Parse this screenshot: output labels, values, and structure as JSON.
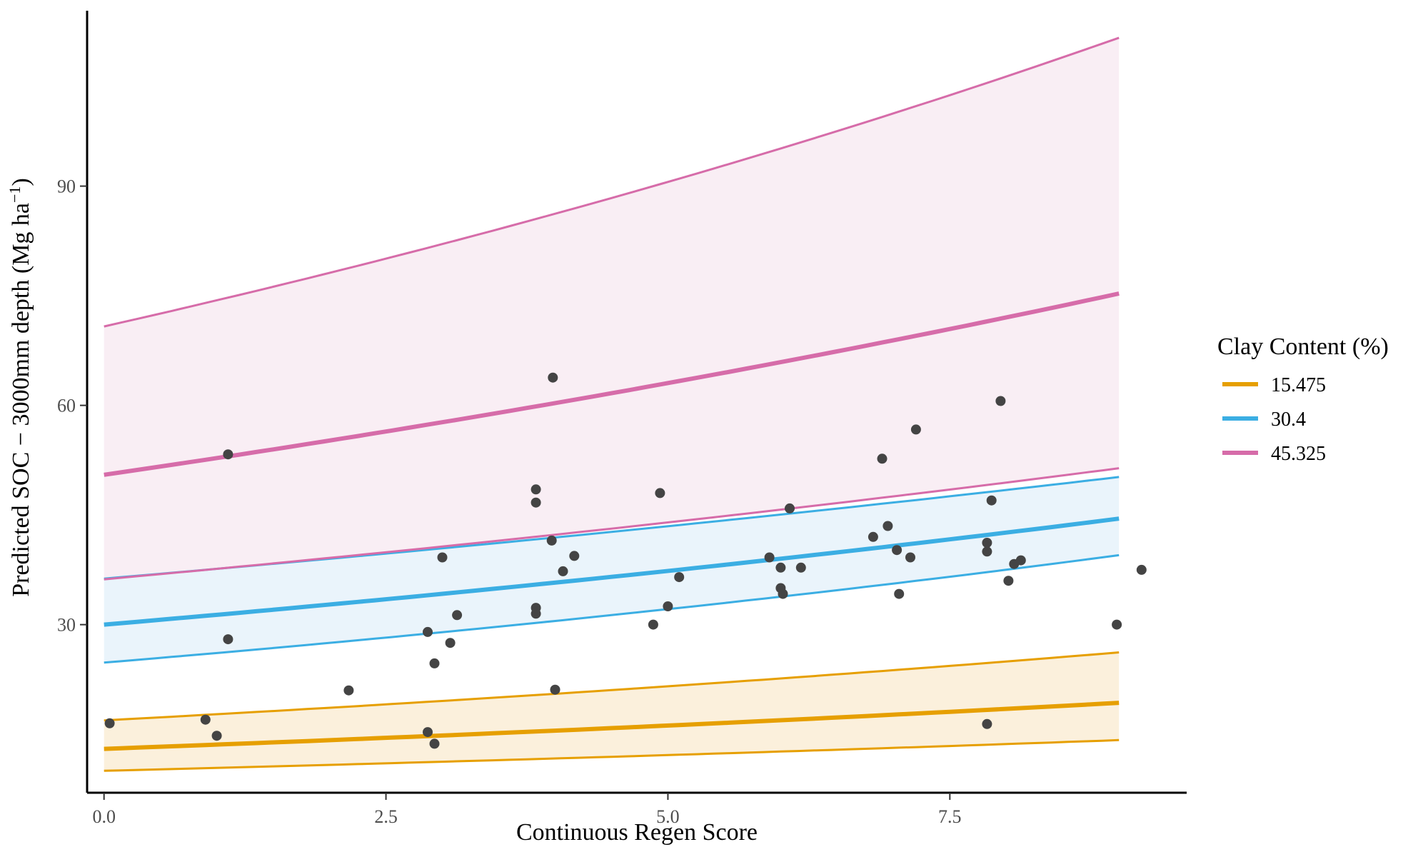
{
  "chart_data": {
    "type": "line",
    "title": "",
    "xlabel": "Continuous Regen Score",
    "ylabel_parts": {
      "main": "Predicted SOC − 3000mm depth (Mg ha",
      "sup": "−1",
      "close": ")"
    },
    "xlim": [
      -0.15,
      9.6
    ],
    "ylim": [
      7.0,
      114.0
    ],
    "x_ticks": [
      0,
      2.5,
      5,
      7.5
    ],
    "x_tick_labels": [
      "0.0",
      "2.5",
      "5.0",
      "7.5"
    ],
    "y_ticks": [
      30,
      60,
      90
    ],
    "y_tick_labels": [
      "30",
      "60",
      "90"
    ],
    "grid": false,
    "legend": {
      "title": "Clay Content (%)",
      "position": "right"
    },
    "series": [
      {
        "name": "15.475",
        "color": "#E69F00",
        "fill": "#FBF0DC",
        "x_start": 0,
        "x_end": 9,
        "fit": [
          13.0,
          19.3
        ],
        "lower": [
          10.0,
          14.2
        ],
        "upper": [
          16.9,
          26.2
        ]
      },
      {
        "name": "30.4",
        "color": "#3BAEE3",
        "fill": "#EAF4FB",
        "x_start": 0,
        "x_end": 9,
        "fit": [
          30.0,
          44.5
        ],
        "lower": [
          24.8,
          39.5
        ],
        "upper": [
          36.3,
          50.2
        ]
      },
      {
        "name": "45.325",
        "color": "#D66CA9",
        "fill": "#F9EEF4",
        "x_start": 0,
        "x_end": 9,
        "fit": [
          50.5,
          75.3
        ],
        "lower": [
          36.2,
          51.4
        ],
        "upper": [
          70.8,
          110.3
        ]
      }
    ],
    "points": [
      [
        0.05,
        16.5
      ],
      [
        0.9,
        17.0
      ],
      [
        1.0,
        14.8
      ],
      [
        1.1,
        53.3
      ],
      [
        1.1,
        28.0
      ],
      [
        2.17,
        21.0
      ],
      [
        2.87,
        29.0
      ],
      [
        2.87,
        15.3
      ],
      [
        2.93,
        13.7
      ],
      [
        2.93,
        24.7
      ],
      [
        3.0,
        39.2
      ],
      [
        3.07,
        27.5
      ],
      [
        3.13,
        31.3
      ],
      [
        3.83,
        48.5
      ],
      [
        3.83,
        46.7
      ],
      [
        3.83,
        32.3
      ],
      [
        3.83,
        31.5
      ],
      [
        3.97,
        41.5
      ],
      [
        3.98,
        63.8
      ],
      [
        4.0,
        21.1
      ],
      [
        4.07,
        37.3
      ],
      [
        4.17,
        39.4
      ],
      [
        4.87,
        30.0
      ],
      [
        4.93,
        48.0
      ],
      [
        5.0,
        32.5
      ],
      [
        5.1,
        36.5
      ],
      [
        5.9,
        39.2
      ],
      [
        6.0,
        37.8
      ],
      [
        6.0,
        35.0
      ],
      [
        6.02,
        34.2
      ],
      [
        6.08,
        45.9
      ],
      [
        6.18,
        37.8
      ],
      [
        6.82,
        42.0
      ],
      [
        6.9,
        52.7
      ],
      [
        6.95,
        43.5
      ],
      [
        7.03,
        40.2
      ],
      [
        7.05,
        34.2
      ],
      [
        7.15,
        39.2
      ],
      [
        7.2,
        56.7
      ],
      [
        7.83,
        41.2
      ],
      [
        7.83,
        40.0
      ],
      [
        7.83,
        16.4
      ],
      [
        7.87,
        47.0
      ],
      [
        7.95,
        60.6
      ],
      [
        8.02,
        36.0
      ],
      [
        8.07,
        38.3
      ],
      [
        8.13,
        38.8
      ],
      [
        8.98,
        30.0
      ],
      [
        9.2,
        37.5
      ]
    ],
    "point_color": "#444444"
  }
}
